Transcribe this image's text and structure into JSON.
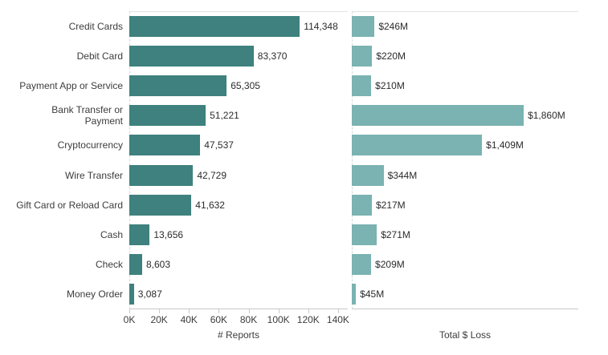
{
  "chart_data": {
    "type": "bar",
    "orientation": "horizontal",
    "title": "",
    "categories": [
      "Credit Cards",
      "Debit Card",
      "Payment App or Service",
      "Bank Transfer or\nPayment",
      "Cryptocurrency",
      "Wire Transfer",
      "Gift Card or Reload Card",
      "Cash",
      "Check",
      "Money Order"
    ],
    "series": [
      {
        "name": "# Reports",
        "values": [
          114348,
          83370,
          65305,
          51221,
          47537,
          42729,
          41632,
          13656,
          8603,
          3087
        ],
        "labels": [
          "114,348",
          "83,370",
          "65,305",
          "51,221",
          "47,537",
          "42,729",
          "41,632",
          "13,656",
          "8,603",
          "3,087"
        ],
        "color": "#3e817e",
        "xlim": [
          0,
          146500
        ],
        "ticks": {
          "values": [
            0,
            20000,
            40000,
            60000,
            80000,
            100000,
            120000,
            140000
          ],
          "labels": [
            "0K",
            "20K",
            "40K",
            "60K",
            "80K",
            "100K",
            "120K",
            "140K"
          ]
        }
      },
      {
        "name": "Total $ Loss",
        "values": [
          246,
          220,
          210,
          1860,
          1409,
          344,
          217,
          271,
          209,
          45
        ],
        "labels": [
          "$246M",
          "$220M",
          "$210M",
          "$1,860M",
          "$1,409M",
          "$344M",
          "$217M",
          "$271M",
          "$209M",
          "$45M"
        ],
        "color": "#7ab3b1",
        "xlim": [
          0,
          2450
        ],
        "ticks": {
          "values": [],
          "labels": []
        }
      }
    ],
    "legend": false,
    "grid": false
  },
  "colors": {
    "bar_reports": "#3e817e",
    "bar_loss": "#7ab3b1",
    "axis_line": "#c9c9c9",
    "panel_top_line": "#e2e2e2",
    "zero_axis_dashed": "#ccdbda",
    "text": "#3c3c3c",
    "value_text": "#2b2b2b",
    "background": "#ffffff"
  }
}
